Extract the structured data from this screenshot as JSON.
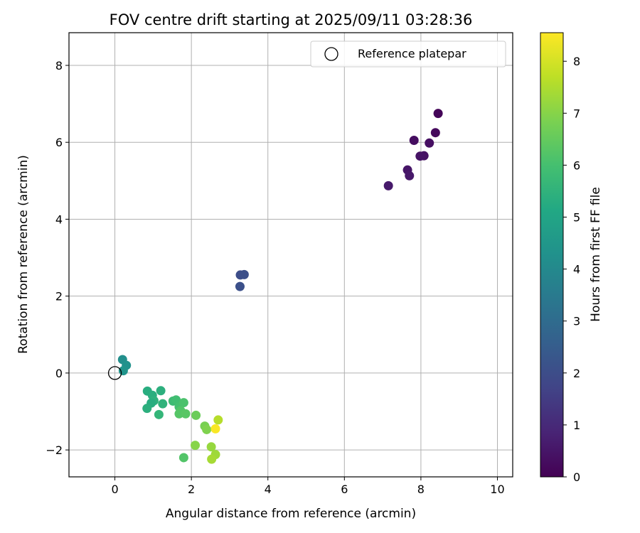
{
  "chart_data": {
    "type": "scatter",
    "title": "FOV centre drift starting at 2025/09/11 03:28:36",
    "xlabel": "Angular distance from reference (arcmin)",
    "ylabel": "Rotation from reference (arcmin)",
    "xlim": [
      -1.2,
      10.4
    ],
    "ylim": [
      -2.7,
      8.85
    ],
    "xticks": [
      0,
      2,
      4,
      6,
      8,
      10
    ],
    "yticks": [
      -2,
      0,
      2,
      4,
      6,
      8
    ],
    "grid": true,
    "legend": {
      "position": "top-right",
      "entries": [
        "Reference platepar"
      ]
    },
    "reference_point": {
      "name": "Reference platepar",
      "x": 0,
      "y": 0
    },
    "colorbar": {
      "label": "Hours from first FF file",
      "colormap": "viridis",
      "range": [
        0,
        8.55
      ],
      "ticks": [
        0,
        1,
        2,
        3,
        4,
        5,
        6,
        7,
        8
      ]
    },
    "points": [
      {
        "x": 8.45,
        "y": 6.75,
        "hours": 0.1
      },
      {
        "x": 8.38,
        "y": 6.25,
        "hours": 0.2
      },
      {
        "x": 7.82,
        "y": 6.05,
        "hours": 0.3
      },
      {
        "x": 8.22,
        "y": 5.98,
        "hours": 0.35
      },
      {
        "x": 8.08,
        "y": 5.65,
        "hours": 0.4
      },
      {
        "x": 7.98,
        "y": 5.64,
        "hours": 0.45
      },
      {
        "x": 7.65,
        "y": 5.28,
        "hours": 0.5
      },
      {
        "x": 7.7,
        "y": 5.13,
        "hours": 0.55
      },
      {
        "x": 7.15,
        "y": 4.87,
        "hours": 0.6
      },
      {
        "x": 3.28,
        "y": 2.55,
        "hours": 2.0
      },
      {
        "x": 3.38,
        "y": 2.56,
        "hours": 2.05
      },
      {
        "x": 3.27,
        "y": 2.25,
        "hours": 2.1
      },
      {
        "x": 0.2,
        "y": 0.35,
        "hours": 4.2
      },
      {
        "x": 0.3,
        "y": 0.2,
        "hours": 4.3
      },
      {
        "x": 0.22,
        "y": 0.06,
        "hours": 4.4
      },
      {
        "x": 0.85,
        "y": -0.47,
        "hours": 5.3
      },
      {
        "x": 1.2,
        "y": -0.46,
        "hours": 5.4
      },
      {
        "x": 0.98,
        "y": -0.58,
        "hours": 5.35
      },
      {
        "x": 1.02,
        "y": -0.72,
        "hours": 5.45
      },
      {
        "x": 1.25,
        "y": -0.8,
        "hours": 5.5
      },
      {
        "x": 0.95,
        "y": -0.78,
        "hours": 5.3
      },
      {
        "x": 0.84,
        "y": -0.92,
        "hours": 5.4
      },
      {
        "x": 1.15,
        "y": -1.08,
        "hours": 5.6
      },
      {
        "x": 1.52,
        "y": -0.73,
        "hours": 5.8
      },
      {
        "x": 1.6,
        "y": -0.7,
        "hours": 5.9
      },
      {
        "x": 1.68,
        "y": -0.88,
        "hours": 6.0
      },
      {
        "x": 1.8,
        "y": -0.77,
        "hours": 6.1
      },
      {
        "x": 1.72,
        "y": -0.98,
        "hours": 6.2
      },
      {
        "x": 1.68,
        "y": -1.06,
        "hours": 6.25
      },
      {
        "x": 1.85,
        "y": -1.06,
        "hours": 6.3
      },
      {
        "x": 1.8,
        "y": -2.2,
        "hours": 6.2
      },
      {
        "x": 2.12,
        "y": -1.1,
        "hours": 6.6
      },
      {
        "x": 2.35,
        "y": -1.38,
        "hours": 6.8
      },
      {
        "x": 2.4,
        "y": -1.47,
        "hours": 6.9
      },
      {
        "x": 2.1,
        "y": -1.88,
        "hours": 7.0
      },
      {
        "x": 2.52,
        "y": -1.92,
        "hours": 7.2
      },
      {
        "x": 2.63,
        "y": -2.12,
        "hours": 7.3
      },
      {
        "x": 2.53,
        "y": -2.24,
        "hours": 7.4
      },
      {
        "x": 2.7,
        "y": -1.22,
        "hours": 7.6
      },
      {
        "x": 2.63,
        "y": -1.45,
        "hours": 8.5
      }
    ]
  }
}
